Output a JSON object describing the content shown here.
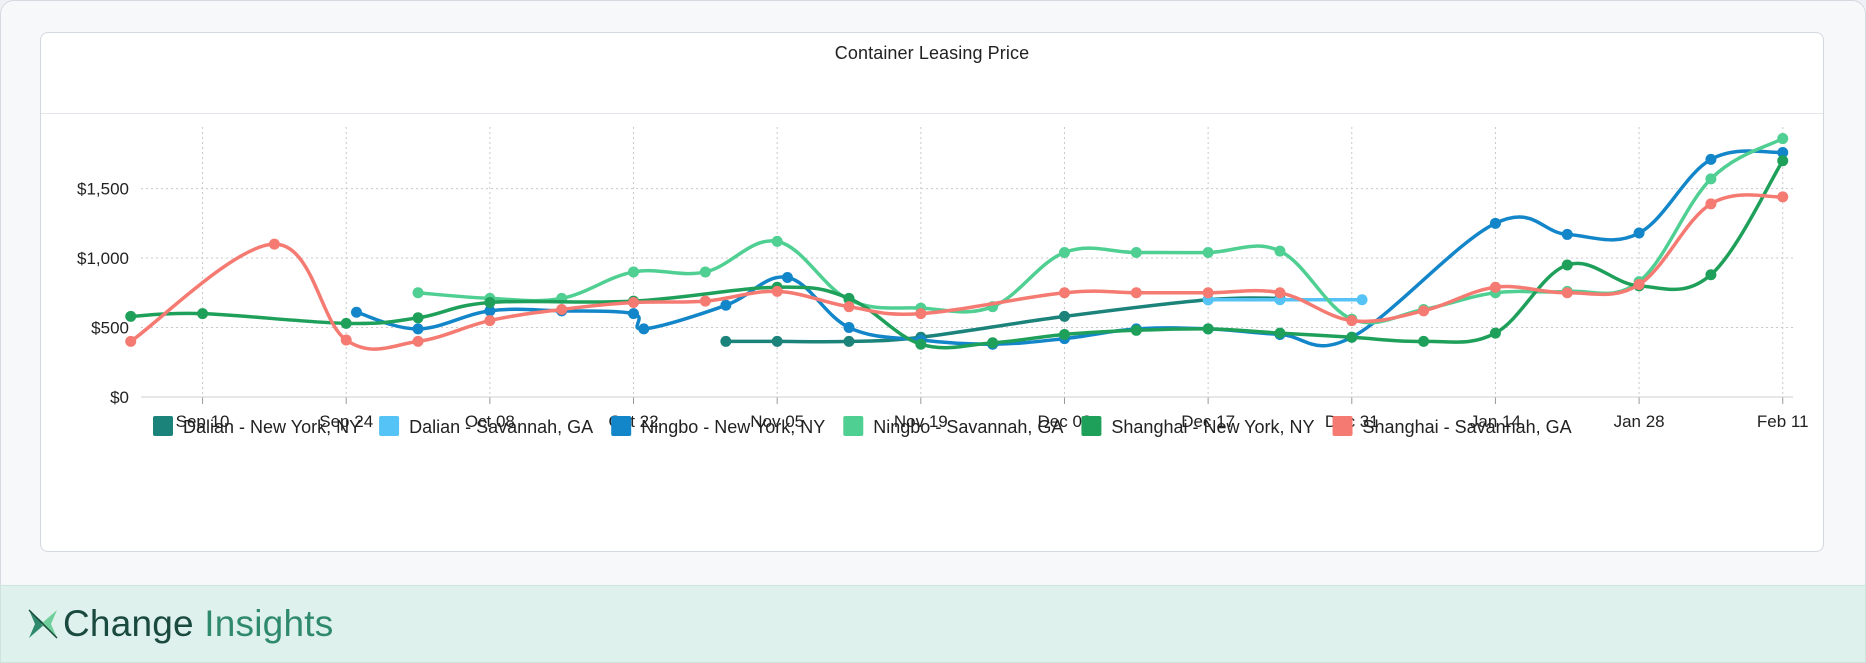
{
  "title": "Container Leasing Price",
  "brand": {
    "name": "Change",
    "suffix": "Insights"
  },
  "chart_data": {
    "type": "line",
    "title": "Container Leasing Price",
    "x_tick_labels": [
      "Sep 10",
      "Sep 24",
      "Oct 08",
      "Oct 22",
      "Nov 05",
      "Nov 19",
      "Dec 03",
      "Dec 17",
      "Dec 31",
      "Jan 14",
      "Jan 28",
      "Feb 11"
    ],
    "x_tick_dates": [
      "2018-09-10",
      "2018-09-24",
      "2018-10-08",
      "2018-10-22",
      "2018-11-05",
      "2018-11-19",
      "2018-12-03",
      "2018-12-17",
      "2018-12-31",
      "2019-01-14",
      "2019-01-28",
      "2019-02-11"
    ],
    "x_range": [
      "2018-09-04",
      "2019-02-12"
    ],
    "y_tick_labels": [
      "$0",
      "$500",
      "$1,000",
      "$1,500"
    ],
    "y_ticks": [
      0,
      500,
      1000,
      1500
    ],
    "ylim": [
      0,
      1900
    ],
    "grid": true,
    "legend_position": "bottom",
    "series": [
      {
        "name": "Dalian - New York, NY",
        "color": "#1b8379",
        "points": [
          [
            "2018-10-31",
            400
          ],
          [
            "2018-11-05",
            400
          ],
          [
            "2018-11-12",
            400
          ],
          [
            "2018-11-19",
            430
          ],
          [
            "2018-12-03",
            580
          ],
          [
            "2018-12-17",
            700
          ],
          [
            "2018-12-24",
            710
          ]
        ]
      },
      {
        "name": "Dalian - Savannah, GA",
        "color": "#55c3f5",
        "points": [
          [
            "2018-12-17",
            700
          ],
          [
            "2018-12-24",
            700
          ],
          [
            "2019-01-01",
            700
          ]
        ]
      },
      {
        "name": "Ningbo - New York, NY",
        "color": "#1386c9",
        "points": [
          [
            "2018-09-25",
            610
          ],
          [
            "2018-10-01",
            490
          ],
          [
            "2018-10-08",
            620
          ],
          [
            "2018-10-15",
            620
          ],
          [
            "2018-10-22",
            600
          ],
          [
            "2018-10-23",
            490
          ],
          [
            "2018-10-31",
            660
          ],
          [
            "2018-11-06",
            860
          ],
          [
            "2018-11-12",
            500
          ],
          [
            "2018-11-19",
            410
          ],
          [
            "2018-11-26",
            380
          ],
          [
            "2018-12-03",
            420
          ],
          [
            "2018-12-10",
            490
          ],
          [
            "2018-12-17",
            490
          ],
          [
            "2018-12-24",
            450
          ],
          [
            "2018-12-31",
            430
          ],
          [
            "2019-01-14",
            1250
          ],
          [
            "2019-01-21",
            1170
          ],
          [
            "2019-01-28",
            1180
          ],
          [
            "2019-02-04",
            1710
          ],
          [
            "2019-02-11",
            1760
          ]
        ]
      },
      {
        "name": "Ningbo - Savannah, GA",
        "color": "#4fcf92",
        "points": [
          [
            "2018-10-01",
            750
          ],
          [
            "2018-10-08",
            710
          ],
          [
            "2018-10-15",
            710
          ],
          [
            "2018-10-22",
            900
          ],
          [
            "2018-10-29",
            900
          ],
          [
            "2018-11-05",
            1120
          ],
          [
            "2018-11-12",
            700
          ],
          [
            "2018-11-19",
            640
          ],
          [
            "2018-11-26",
            650
          ],
          [
            "2018-12-03",
            1040
          ],
          [
            "2018-12-10",
            1040
          ],
          [
            "2018-12-17",
            1040
          ],
          [
            "2018-12-24",
            1050
          ],
          [
            "2018-12-31",
            560
          ],
          [
            "2019-01-07",
            630
          ],
          [
            "2019-01-14",
            750
          ],
          [
            "2019-01-21",
            760
          ],
          [
            "2019-01-28",
            830
          ],
          [
            "2019-02-04",
            1570
          ],
          [
            "2019-02-11",
            1860
          ]
        ]
      },
      {
        "name": "Shanghai - New York, NY",
        "color": "#1fa05a",
        "points": [
          [
            "2018-09-03",
            580
          ],
          [
            "2018-09-10",
            600
          ],
          [
            "2018-09-24",
            530
          ],
          [
            "2018-10-01",
            570
          ],
          [
            "2018-10-08",
            680
          ],
          [
            "2018-10-22",
            690
          ],
          [
            "2018-11-05",
            790
          ],
          [
            "2018-11-12",
            710
          ],
          [
            "2018-11-19",
            380
          ],
          [
            "2018-11-26",
            390
          ],
          [
            "2018-12-03",
            450
          ],
          [
            "2018-12-10",
            480
          ],
          [
            "2018-12-17",
            490
          ],
          [
            "2018-12-24",
            460
          ],
          [
            "2018-12-31",
            430
          ],
          [
            "2019-01-07",
            400
          ],
          [
            "2019-01-14",
            460
          ],
          [
            "2019-01-21",
            950
          ],
          [
            "2019-01-28",
            800
          ],
          [
            "2019-02-04",
            880
          ],
          [
            "2019-02-11",
            1700
          ]
        ]
      },
      {
        "name": "Shanghai - Savannah, GA",
        "color": "#f47a72",
        "points": [
          [
            "2018-09-03",
            400
          ],
          [
            "2018-09-17",
            1100
          ],
          [
            "2018-09-24",
            410
          ],
          [
            "2018-10-01",
            400
          ],
          [
            "2018-10-08",
            550
          ],
          [
            "2018-10-15",
            630
          ],
          [
            "2018-10-22",
            680
          ],
          [
            "2018-10-29",
            690
          ],
          [
            "2018-11-05",
            760
          ],
          [
            "2018-11-12",
            650
          ],
          [
            "2018-11-19",
            600
          ],
          [
            "2018-12-03",
            750
          ],
          [
            "2018-12-10",
            750
          ],
          [
            "2018-12-17",
            750
          ],
          [
            "2018-12-24",
            750
          ],
          [
            "2018-12-31",
            550
          ],
          [
            "2019-01-07",
            620
          ],
          [
            "2019-01-14",
            790
          ],
          [
            "2019-01-21",
            750
          ],
          [
            "2019-01-28",
            810
          ],
          [
            "2019-02-04",
            1390
          ],
          [
            "2019-02-11",
            1440
          ]
        ]
      }
    ]
  }
}
